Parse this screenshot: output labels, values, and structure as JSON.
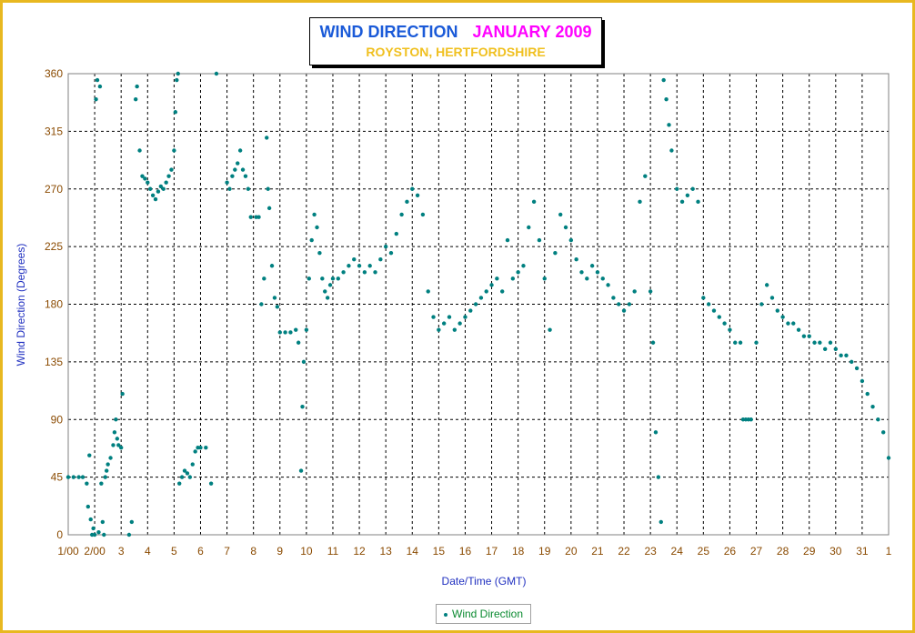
{
  "chart_data": {
    "type": "scatter",
    "title": "WIND DIRECTION",
    "title_month": "JANUARY 2009",
    "subtitle": "ROYSTON, HERTFORDSHIRE",
    "xlabel": "Date/Time (GMT)",
    "ylabel": "Wind Direction (Degrees)",
    "ylim": [
      0,
      360
    ],
    "xlim": [
      0,
      31
    ],
    "y_ticks": [
      0,
      45,
      90,
      135,
      180,
      225,
      270,
      315,
      360
    ],
    "x_ticks": [
      {
        "v": 0,
        "label": "1/00"
      },
      {
        "v": 1,
        "label": "2/00"
      },
      {
        "v": 2,
        "label": "3"
      },
      {
        "v": 3,
        "label": "4"
      },
      {
        "v": 4,
        "label": "5"
      },
      {
        "v": 5,
        "label": "6"
      },
      {
        "v": 6,
        "label": "7"
      },
      {
        "v": 7,
        "label": "8"
      },
      {
        "v": 8,
        "label": "9"
      },
      {
        "v": 9,
        "label": "10"
      },
      {
        "v": 10,
        "label": "11"
      },
      {
        "v": 11,
        "label": "12"
      },
      {
        "v": 12,
        "label": "13"
      },
      {
        "v": 13,
        "label": "14"
      },
      {
        "v": 14,
        "label": "15"
      },
      {
        "v": 15,
        "label": "16"
      },
      {
        "v": 16,
        "label": "17"
      },
      {
        "v": 17,
        "label": "18"
      },
      {
        "v": 18,
        "label": "19"
      },
      {
        "v": 19,
        "label": "20"
      },
      {
        "v": 20,
        "label": "21"
      },
      {
        "v": 21,
        "label": "22"
      },
      {
        "v": 22,
        "label": "23"
      },
      {
        "v": 23,
        "label": "24"
      },
      {
        "v": 24,
        "label": "25"
      },
      {
        "v": 25,
        "label": "26"
      },
      {
        "v": 26,
        "label": "27"
      },
      {
        "v": 27,
        "label": "28"
      },
      {
        "v": 28,
        "label": "29"
      },
      {
        "v": 29,
        "label": "30"
      },
      {
        "v": 30,
        "label": "31"
      },
      {
        "v": 31,
        "label": "1"
      }
    ],
    "grid": true,
    "legend_position": "bottom-center",
    "series": [
      {
        "name": "Wind Direction",
        "color": "#008080",
        "points": [
          [
            0.0,
            45
          ],
          [
            0.2,
            45
          ],
          [
            0.4,
            45
          ],
          [
            0.55,
            45
          ],
          [
            0.7,
            40
          ],
          [
            0.75,
            22
          ],
          [
            0.8,
            62
          ],
          [
            0.85,
            12
          ],
          [
            0.9,
            0
          ],
          [
            0.95,
            5
          ],
          [
            1.0,
            0
          ],
          [
            1.05,
            340
          ],
          [
            1.1,
            355
          ],
          [
            1.15,
            2
          ],
          [
            1.2,
            350
          ],
          [
            1.25,
            40
          ],
          [
            1.3,
            10
          ],
          [
            1.35,
            0
          ],
          [
            1.4,
            45
          ],
          [
            1.45,
            50
          ],
          [
            1.5,
            55
          ],
          [
            1.6,
            60
          ],
          [
            1.7,
            70
          ],
          [
            1.75,
            80
          ],
          [
            1.8,
            90
          ],
          [
            1.85,
            75
          ],
          [
            1.9,
            70
          ],
          [
            2.0,
            68
          ],
          [
            2.05,
            110
          ],
          [
            2.3,
            0
          ],
          [
            2.4,
            10
          ],
          [
            2.55,
            340
          ],
          [
            2.6,
            350
          ],
          [
            2.7,
            300
          ],
          [
            2.8,
            280
          ],
          [
            2.9,
            278
          ],
          [
            3.0,
            275
          ],
          [
            3.1,
            270
          ],
          [
            3.2,
            265
          ],
          [
            3.3,
            262
          ],
          [
            3.4,
            268
          ],
          [
            3.5,
            272
          ],
          [
            3.6,
            270
          ],
          [
            3.7,
            275
          ],
          [
            3.8,
            280
          ],
          [
            3.9,
            285
          ],
          [
            4.0,
            300
          ],
          [
            4.05,
            330
          ],
          [
            4.1,
            355
          ],
          [
            4.15,
            360
          ],
          [
            4.2,
            40
          ],
          [
            4.3,
            45
          ],
          [
            4.4,
            50
          ],
          [
            4.5,
            48
          ],
          [
            4.6,
            45
          ],
          [
            4.7,
            55
          ],
          [
            4.8,
            65
          ],
          [
            4.9,
            68
          ],
          [
            5.0,
            68
          ],
          [
            5.2,
            68
          ],
          [
            5.4,
            40
          ],
          [
            5.6,
            360
          ],
          [
            6.0,
            275
          ],
          [
            6.1,
            270
          ],
          [
            6.2,
            280
          ],
          [
            6.3,
            285
          ],
          [
            6.4,
            290
          ],
          [
            6.5,
            300
          ],
          [
            6.6,
            285
          ],
          [
            6.7,
            280
          ],
          [
            6.8,
            270
          ],
          [
            6.9,
            248
          ],
          [
            7.1,
            248
          ],
          [
            7.2,
            248
          ],
          [
            7.3,
            180
          ],
          [
            7.4,
            200
          ],
          [
            7.5,
            310
          ],
          [
            7.55,
            270
          ],
          [
            7.6,
            255
          ],
          [
            7.7,
            210
          ],
          [
            7.8,
            185
          ],
          [
            7.9,
            178
          ],
          [
            8.0,
            158
          ],
          [
            8.2,
            158
          ],
          [
            8.4,
            158
          ],
          [
            8.6,
            160
          ],
          [
            8.7,
            150
          ],
          [
            8.8,
            50
          ],
          [
            8.85,
            100
          ],
          [
            8.9,
            135
          ],
          [
            9.0,
            160
          ],
          [
            9.1,
            200
          ],
          [
            9.2,
            230
          ],
          [
            9.3,
            250
          ],
          [
            9.4,
            240
          ],
          [
            9.5,
            220
          ],
          [
            9.6,
            200
          ],
          [
            9.7,
            190
          ],
          [
            9.8,
            185
          ],
          [
            9.9,
            195
          ],
          [
            10.0,
            200
          ],
          [
            10.2,
            200
          ],
          [
            10.4,
            205
          ],
          [
            10.6,
            210
          ],
          [
            10.8,
            215
          ],
          [
            11.0,
            210
          ],
          [
            11.2,
            205
          ],
          [
            11.4,
            210
          ],
          [
            11.6,
            205
          ],
          [
            11.8,
            215
          ],
          [
            12.0,
            225
          ],
          [
            12.2,
            220
          ],
          [
            12.4,
            235
          ],
          [
            12.6,
            250
          ],
          [
            12.8,
            260
          ],
          [
            13.0,
            270
          ],
          [
            13.2,
            265
          ],
          [
            13.4,
            250
          ],
          [
            13.6,
            190
          ],
          [
            13.8,
            170
          ],
          [
            14.0,
            160
          ],
          [
            14.2,
            165
          ],
          [
            14.4,
            170
          ],
          [
            14.6,
            160
          ],
          [
            14.8,
            165
          ],
          [
            15.0,
            170
          ],
          [
            15.2,
            175
          ],
          [
            15.4,
            180
          ],
          [
            15.6,
            185
          ],
          [
            15.8,
            190
          ],
          [
            16.0,
            195
          ],
          [
            16.2,
            200
          ],
          [
            16.4,
            190
          ],
          [
            16.6,
            230
          ],
          [
            16.8,
            200
          ],
          [
            17.0,
            205
          ],
          [
            17.2,
            210
          ],
          [
            17.4,
            240
          ],
          [
            17.6,
            260
          ],
          [
            17.8,
            230
          ],
          [
            18.0,
            200
          ],
          [
            18.2,
            160
          ],
          [
            18.4,
            220
          ],
          [
            18.6,
            250
          ],
          [
            18.8,
            240
          ],
          [
            19.0,
            230
          ],
          [
            19.2,
            215
          ],
          [
            19.4,
            205
          ],
          [
            19.6,
            200
          ],
          [
            19.8,
            210
          ],
          [
            20.0,
            205
          ],
          [
            20.2,
            200
          ],
          [
            20.4,
            195
          ],
          [
            20.6,
            185
          ],
          [
            20.8,
            180
          ],
          [
            21.0,
            175
          ],
          [
            21.2,
            180
          ],
          [
            21.4,
            190
          ],
          [
            21.6,
            260
          ],
          [
            21.8,
            280
          ],
          [
            22.0,
            190
          ],
          [
            22.1,
            150
          ],
          [
            22.2,
            80
          ],
          [
            22.3,
            45
          ],
          [
            22.4,
            10
          ],
          [
            22.5,
            355
          ],
          [
            22.6,
            340
          ],
          [
            22.7,
            320
          ],
          [
            22.8,
            300
          ],
          [
            23.0,
            270
          ],
          [
            23.2,
            260
          ],
          [
            23.4,
            265
          ],
          [
            23.6,
            270
          ],
          [
            23.8,
            260
          ],
          [
            24.0,
            185
          ],
          [
            24.2,
            180
          ],
          [
            24.4,
            175
          ],
          [
            24.6,
            170
          ],
          [
            24.8,
            165
          ],
          [
            25.0,
            160
          ],
          [
            25.2,
            150
          ],
          [
            25.4,
            150
          ],
          [
            25.5,
            90
          ],
          [
            25.6,
            90
          ],
          [
            25.7,
            90
          ],
          [
            25.8,
            90
          ],
          [
            26.0,
            150
          ],
          [
            26.2,
            180
          ],
          [
            26.4,
            195
          ],
          [
            26.6,
            185
          ],
          [
            26.8,
            175
          ],
          [
            27.0,
            170
          ],
          [
            27.2,
            165
          ],
          [
            27.4,
            165
          ],
          [
            27.6,
            160
          ],
          [
            27.8,
            155
          ],
          [
            28.0,
            155
          ],
          [
            28.2,
            150
          ],
          [
            28.4,
            150
          ],
          [
            28.6,
            145
          ],
          [
            28.8,
            150
          ],
          [
            29.0,
            145
          ],
          [
            29.2,
            140
          ],
          [
            29.4,
            140
          ],
          [
            29.6,
            135
          ],
          [
            29.8,
            130
          ],
          [
            30.0,
            120
          ],
          [
            30.2,
            110
          ],
          [
            30.4,
            100
          ],
          [
            30.6,
            90
          ],
          [
            30.8,
            80
          ],
          [
            31.0,
            60
          ]
        ]
      }
    ]
  }
}
